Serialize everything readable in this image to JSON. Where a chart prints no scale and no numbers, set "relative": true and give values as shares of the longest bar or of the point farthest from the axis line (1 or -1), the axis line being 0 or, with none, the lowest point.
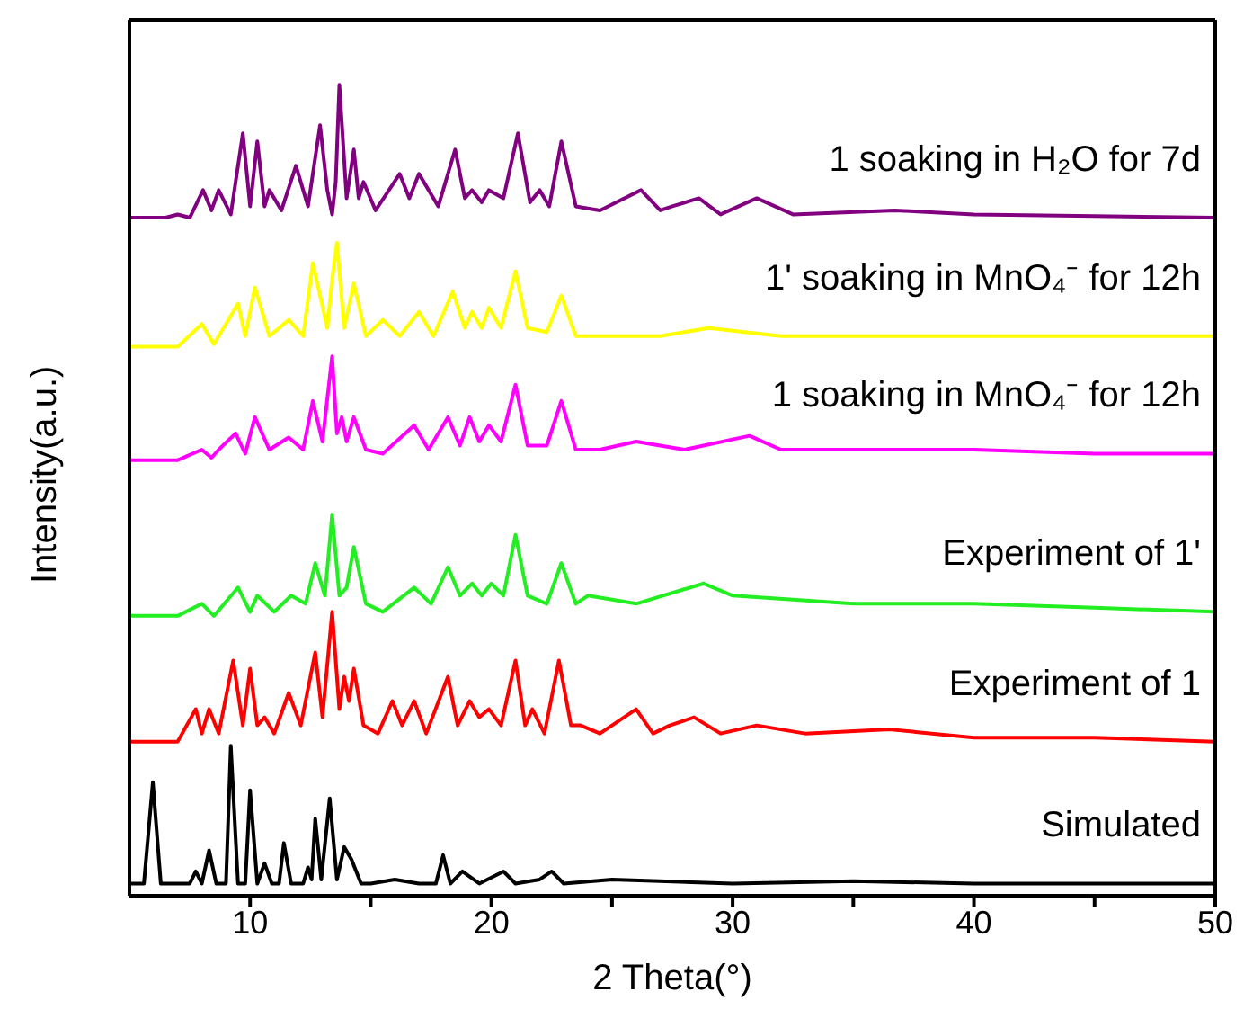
{
  "chart_data": {
    "type": "line",
    "relative": true,
    "xlabel": "2 Theta(°)",
    "ylabel": "Intensity(a.u.)",
    "xlim": [
      5,
      50
    ],
    "xticks": [
      10,
      {
        "value": 15,
        "label": null
      },
      20,
      {
        "value": 25,
        "label": null
      },
      30,
      {
        "value": 35,
        "label": null
      },
      40,
      {
        "value": 45,
        "label": null
      },
      50
    ],
    "tick_labels": "x",
    "marker": "none",
    "line_style": "solid",
    "series": [
      {
        "name": "Simulated",
        "color": "#000000",
        "x": [
          5,
          5.6,
          5.97,
          6.3,
          7.5,
          7.75,
          8.0,
          8.3,
          8.6,
          9.0,
          9.2,
          9.5,
          9.8,
          10.0,
          10.3,
          10.6,
          10.9,
          11.2,
          11.4,
          11.7,
          12.2,
          12.4,
          12.55,
          12.7,
          12.95,
          13.3,
          13.6,
          13.9,
          14.2,
          14.6,
          15,
          16,
          17,
          17.7,
          18.0,
          18.3,
          18.8,
          19.5,
          20.5,
          21,
          22,
          22.5,
          23,
          25,
          30,
          35,
          40,
          45,
          50
        ],
        "values": [
          0.015,
          0.015,
          0.14,
          0.015,
          0.015,
          0.03,
          0.015,
          0.056,
          0.015,
          0.015,
          0.185,
          0.015,
          0.015,
          0.13,
          0.015,
          0.04,
          0.015,
          0.015,
          0.065,
          0.015,
          0.015,
          0.035,
          0.02,
          0.095,
          0.02,
          0.12,
          0.02,
          0.06,
          0.045,
          0.015,
          0.015,
          0.02,
          0.015,
          0.015,
          0.05,
          0.015,
          0.03,
          0.015,
          0.03,
          0.015,
          0.02,
          0.03,
          0.015,
          0.02,
          0.015,
          0.018,
          0.015,
          0.015,
          0.015
        ]
      },
      {
        "name": "Experiment of 1",
        "color": "#ff0000",
        "x": [
          5,
          7,
          7.75,
          8.0,
          8.3,
          8.7,
          9.3,
          9.7,
          10.0,
          10.3,
          10.6,
          11.0,
          11.6,
          12.1,
          12.7,
          13.0,
          13.4,
          13.7,
          13.9,
          14.1,
          14.3,
          14.7,
          15.3,
          15.9,
          16.3,
          16.8,
          17.3,
          18.2,
          18.6,
          19.1,
          19.5,
          19.9,
          20.4,
          21.0,
          21.4,
          21.7,
          22.2,
          22.8,
          23.3,
          23.7,
          24.5,
          26.0,
          26.7,
          27.4,
          28.4,
          29.5,
          31,
          33,
          36.5,
          40,
          45,
          50
        ],
        "values": [
          0.19,
          0.19,
          0.23,
          0.2,
          0.23,
          0.2,
          0.29,
          0.21,
          0.28,
          0.21,
          0.22,
          0.2,
          0.25,
          0.21,
          0.3,
          0.22,
          0.35,
          0.23,
          0.27,
          0.24,
          0.28,
          0.21,
          0.2,
          0.24,
          0.21,
          0.24,
          0.2,
          0.27,
          0.21,
          0.24,
          0.22,
          0.23,
          0.21,
          0.29,
          0.21,
          0.23,
          0.2,
          0.29,
          0.21,
          0.21,
          0.2,
          0.23,
          0.2,
          0.21,
          0.22,
          0.2,
          0.21,
          0.2,
          0.205,
          0.195,
          0.195,
          0.19
        ]
      },
      {
        "name": "Experiment of 1'",
        "color": "#22ee22",
        "x": [
          5,
          7,
          8.0,
          8.5,
          9.5,
          10.0,
          10.3,
          11.0,
          11.7,
          12.3,
          12.7,
          13.1,
          13.4,
          13.7,
          14.0,
          14.3,
          14.8,
          15.5,
          16.8,
          17.5,
          18.2,
          18.7,
          19.2,
          19.6,
          20.0,
          20.5,
          21.0,
          21.5,
          22.3,
          22.9,
          23.5,
          24,
          26,
          28.8,
          30,
          35,
          40,
          45,
          50
        ],
        "values": [
          0.345,
          0.345,
          0.36,
          0.345,
          0.38,
          0.35,
          0.37,
          0.35,
          0.37,
          0.36,
          0.41,
          0.37,
          0.47,
          0.37,
          0.38,
          0.43,
          0.36,
          0.35,
          0.38,
          0.36,
          0.405,
          0.37,
          0.385,
          0.37,
          0.385,
          0.37,
          0.445,
          0.37,
          0.36,
          0.41,
          0.36,
          0.37,
          0.36,
          0.385,
          0.37,
          0.36,
          0.36,
          0.355,
          0.35
        ]
      },
      {
        "name": "1 soaking in MnO₄⁻ for 12h",
        "color": "#ff00ff",
        "x": [
          5,
          7,
          8.0,
          8.4,
          8.7,
          9.4,
          9.8,
          10.2,
          10.8,
          11.6,
          12.2,
          12.6,
          13.0,
          13.4,
          13.6,
          13.8,
          14.0,
          14.3,
          14.8,
          15.5,
          16.8,
          17.4,
          18.2,
          18.7,
          19.1,
          19.5,
          19.9,
          20.4,
          21.0,
          21.5,
          22.3,
          22.9,
          23.5,
          24.5,
          26,
          28,
          30.7,
          32,
          36,
          40,
          45,
          50
        ],
        "values": [
          0.537,
          0.537,
          0.55,
          0.54,
          0.55,
          0.57,
          0.545,
          0.59,
          0.55,
          0.565,
          0.55,
          0.61,
          0.56,
          0.665,
          0.57,
          0.59,
          0.56,
          0.59,
          0.55,
          0.545,
          0.58,
          0.55,
          0.59,
          0.555,
          0.59,
          0.56,
          0.58,
          0.56,
          0.63,
          0.555,
          0.555,
          0.61,
          0.55,
          0.55,
          0.56,
          0.55,
          0.567,
          0.55,
          0.55,
          0.55,
          0.545,
          0.545
        ]
      },
      {
        "name": "1' soaking in MnO₄⁻ for 12h",
        "color": "#ffff00",
        "x": [
          5,
          7,
          8.0,
          8.5,
          9.5,
          9.8,
          10.2,
          10.8,
          11.6,
          12.2,
          12.6,
          13.2,
          13.4,
          13.6,
          13.9,
          14.3,
          14.8,
          15.5,
          16.2,
          17.0,
          17.6,
          18.4,
          18.9,
          19.2,
          19.6,
          19.9,
          20.4,
          21.0,
          21.5,
          22.3,
          22.9,
          23.5,
          25,
          27,
          29,
          32,
          36,
          40,
          45,
          50
        ],
        "values": [
          0.677,
          0.677,
          0.705,
          0.68,
          0.73,
          0.69,
          0.75,
          0.69,
          0.71,
          0.69,
          0.78,
          0.7,
          0.76,
          0.805,
          0.7,
          0.755,
          0.69,
          0.71,
          0.69,
          0.72,
          0.69,
          0.745,
          0.7,
          0.72,
          0.7,
          0.725,
          0.7,
          0.77,
          0.7,
          0.695,
          0.74,
          0.69,
          0.69,
          0.69,
          0.7,
          0.69,
          0.69,
          0.69,
          0.69,
          0.69
        ]
      },
      {
        "name": "1 soaking in H₂O for 7d",
        "color": "#800080",
        "x": [
          5,
          6.5,
          7,
          7.5,
          8.05,
          8.4,
          8.7,
          9.2,
          9.7,
          10.0,
          10.3,
          10.6,
          10.8,
          11.3,
          11.9,
          12.4,
          12.9,
          13.2,
          13.4,
          13.55,
          13.7,
          14.0,
          14.3,
          14.5,
          14.7,
          15.2,
          16.2,
          16.6,
          17.0,
          17.8,
          18.5,
          18.9,
          19.2,
          19.6,
          19.9,
          20.5,
          21.1,
          21.6,
          22.0,
          22.4,
          22.9,
          23.5,
          24.5,
          26.2,
          27,
          27.5,
          28.6,
          29.5,
          31,
          32.5,
          36.7,
          40,
          45,
          50
        ],
        "values": [
          0.836,
          0.836,
          0.84,
          0.836,
          0.87,
          0.845,
          0.87,
          0.84,
          0.94,
          0.85,
          0.93,
          0.85,
          0.87,
          0.845,
          0.9,
          0.85,
          0.95,
          0.87,
          0.84,
          0.88,
          1.0,
          0.86,
          0.92,
          0.86,
          0.88,
          0.845,
          0.89,
          0.86,
          0.89,
          0.85,
          0.92,
          0.86,
          0.87,
          0.855,
          0.87,
          0.86,
          0.94,
          0.855,
          0.87,
          0.85,
          0.93,
          0.85,
          0.845,
          0.87,
          0.845,
          0.85,
          0.86,
          0.84,
          0.86,
          0.84,
          0.845,
          0.84,
          0.838,
          0.836
        ]
      }
    ]
  }
}
